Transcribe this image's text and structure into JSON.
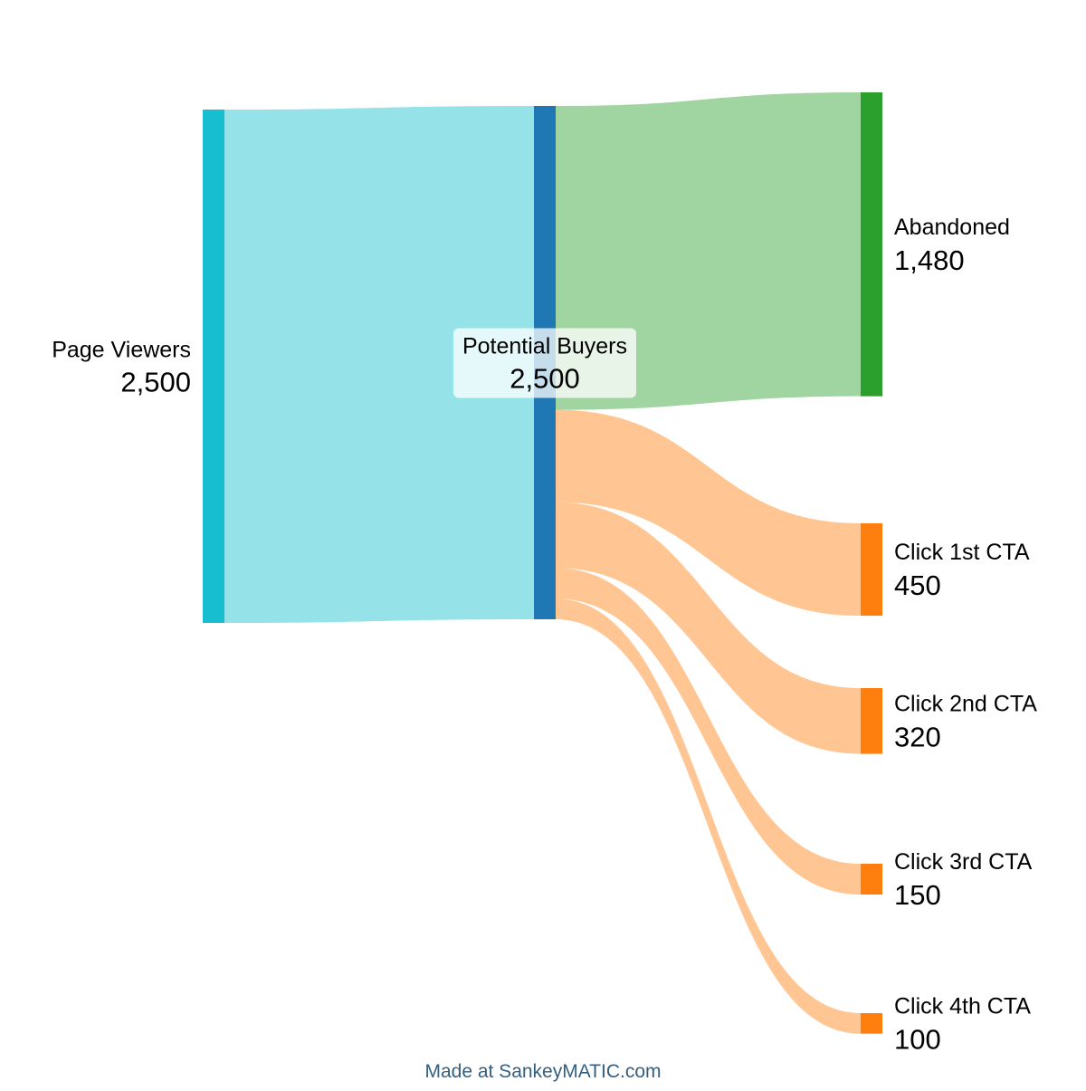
{
  "chart_data": {
    "type": "sankey",
    "nodes": [
      {
        "name": "Page Viewers",
        "value": 2500,
        "value_label": "2,500",
        "color": "#17becf"
      },
      {
        "name": "Potential Buyers",
        "value": 2500,
        "value_label": "2,500",
        "color": "#1f77b4"
      },
      {
        "name": "Abandoned",
        "value": 1480,
        "value_label": "1,480",
        "color": "#2ca02c"
      },
      {
        "name": "Click 1st CTA",
        "value": 450,
        "value_label": "450",
        "color": "#ff7f0e"
      },
      {
        "name": "Click 2nd CTA",
        "value": 320,
        "value_label": "320",
        "color": "#ff7f0e"
      },
      {
        "name": "Click 3rd CTA",
        "value": 150,
        "value_label": "150",
        "color": "#ff7f0e"
      },
      {
        "name": "Click 4th CTA",
        "value": 100,
        "value_label": "100",
        "color": "#ff7f0e"
      }
    ],
    "links": [
      {
        "source": "Page Viewers",
        "target": "Potential Buyers",
        "value": 2500,
        "color": "#17becf"
      },
      {
        "source": "Potential Buyers",
        "target": "Abandoned",
        "value": 1480,
        "color": "#2ca02c"
      },
      {
        "source": "Potential Buyers",
        "target": "Click 1st CTA",
        "value": 450,
        "color": "#ff7f0e"
      },
      {
        "source": "Potential Buyers",
        "target": "Click 2nd CTA",
        "value": 320,
        "color": "#ff7f0e"
      },
      {
        "source": "Potential Buyers",
        "target": "Click 3rd CTA",
        "value": 150,
        "color": "#ff7f0e"
      },
      {
        "source": "Potential Buyers",
        "target": "Click 4th CTA",
        "value": 100,
        "color": "#ff7f0e"
      }
    ],
    "footer": "Made at SankeyMATIC.com"
  }
}
